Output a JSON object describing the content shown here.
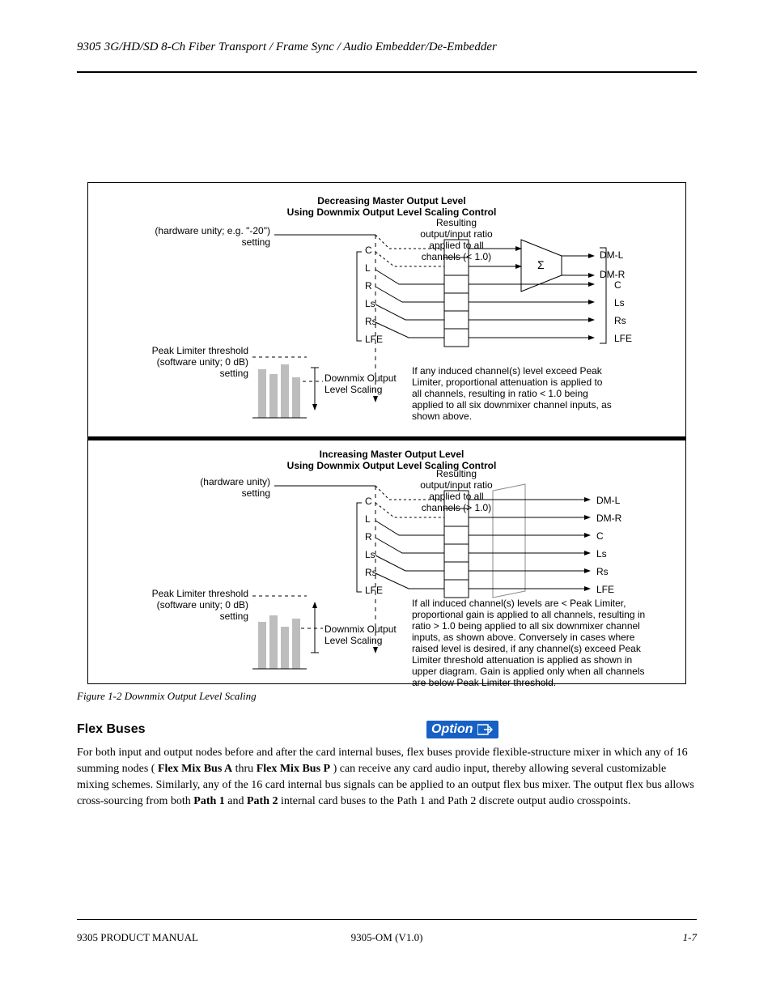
{
  "header": {
    "running": "9305 3G/HD/SD 8-Ch Fiber Transport / Frame Sync / Audio Embedder/De-Embedder"
  },
  "footer": {
    "doc": "9305 PRODUCT MANUAL",
    "version": "9305-OM (V1.0)",
    "page": "1-7"
  },
  "figure": {
    "toptitle": "Decreasing Master Output Level\nUsing Downmix Output Level Scaling Control",
    "bottitle": "Increasing Master Output Level\nUsing Downmix Output Level Scaling Control",
    "channels": [
      "C",
      "L",
      "R",
      "Ls",
      "Rs",
      "LFE"
    ],
    "outputsA": [
      "DM-L",
      "DM-R"
    ],
    "inputsA_passthru": [
      "C",
      "Ls",
      "Rs",
      "LFE"
    ],
    "hw_minus20": "(hardware unity; e.g. \"-20\") setting",
    "hw_unity": "(hardware unity)\nsetting",
    "ratioA": "Resulting output/input ratio applied to all channels (< 1.0)",
    "ratioB": "Resulting output/input ratio applied to all channels (> 1.0)",
    "Sigma": "Σ",
    "peak_limit": "Peak Limiter threshold\n(software unity; 0 dB)\nsetting",
    "atten_note": "If any induced channel(s) level exceed Peak\nLimiter, proportional attenuation is applied to\nall channels, resulting in ratio < 1.0 being\napplied to all six downmixer channel inputs, as\nshown above.",
    "liftA": "Downmix Output\nLevel Scaling",
    "liftB": "Downmix Output\nLevel Scaling",
    "gain_note": "If all induced channel(s) levels are < Peak Limiter,\nproportional gain is applied to all channels, resulting in\nratio > 1.0 being applied to all six downmixer channel\ninputs, as shown above. Conversely in cases where\nraised level is desired, if any channel(s) exceed Peak\nLimiter threshold attenuation is applied as shown in\nupper diagram. Gain is applied only when all channels\nare below Peak Limiter threshold.",
    "outputsB": [
      "DM-L",
      "DM-R",
      "C",
      "Ls",
      "Rs",
      "LFE"
    ],
    "caption": "Figure 1-2  Downmix Output Level Scaling"
  },
  "section": {
    "heading": "Flex Buses",
    "option_label": "Option",
    "p1": "For both input and output nodes before and after the card internal buses, flex buses provide flexible-structure mixer in which any of 16 summing nodes (",
    "p1mid": ") can receive any card audio input, thereby allowing several customizable mixing schemes. Similarly, any of the 16 card internal bus signals can be applied to an output flex bus mixer. The output flex bus allows cross-sourcing from both ",
    "p1end": " internal card buses to the Path 1 and Path 2 discrete output audio crosspoints.",
    "flexA": "Flex Mix Bus A",
    "flexP": "Flex Mix Bus P",
    "path1": "Path 1",
    "path2": "Path 2"
  }
}
